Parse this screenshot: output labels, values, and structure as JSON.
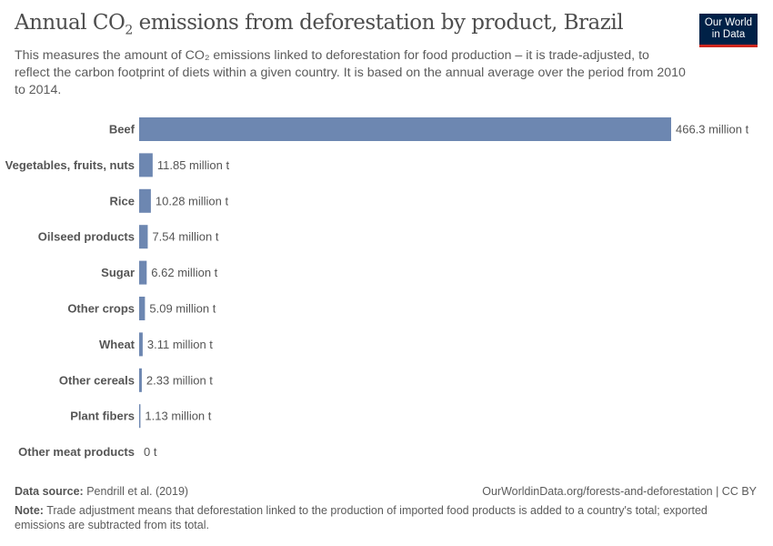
{
  "header": {
    "title_pre": "Annual CO",
    "title_sub": "2",
    "title_post": " emissions from deforestation by product, Brazil",
    "subtitle": "This measures the amount of CO₂ emissions linked to deforestation for food production – it is trade-adjusted, to reflect the carbon footprint of diets within a given country. It is based on the annual average over the period from 2010 to 2014.",
    "logo_line1": "Our World",
    "logo_line2": "in Data",
    "logo_bg": "#002147",
    "logo_accent": "#ce261e"
  },
  "chart_data": {
    "type": "bar",
    "orientation": "horizontal",
    "categories": [
      "Beef",
      "Vegetables, fruits, nuts",
      "Rice",
      "Oilseed products",
      "Sugar",
      "Other crops",
      "Wheat",
      "Other cereals",
      "Plant fibers",
      "Other meat products"
    ],
    "values": [
      466.3,
      11.85,
      10.28,
      7.54,
      6.62,
      5.09,
      3.11,
      2.33,
      1.13,
      0
    ],
    "labels": [
      "466.3 million t",
      "11.85 million t",
      "10.28 million t",
      "7.54 million t",
      "6.62 million t",
      "5.09 million t",
      "3.11 million t",
      "2.33 million t",
      "1.13 million t",
      "0 t"
    ],
    "unit": "million t",
    "bar_color": "#6d87b1",
    "grid": false
  },
  "footer": {
    "source_label": "Data source:",
    "source": " Pendrill et al. (2019)",
    "url": "OurWorldinData.org/forests-and-deforestation | CC BY",
    "note_label": "Note:",
    "note": " Trade adjustment means that deforestation linked to the production of imported food products is added to a country's total; exported emissions are subtracted from its total."
  }
}
